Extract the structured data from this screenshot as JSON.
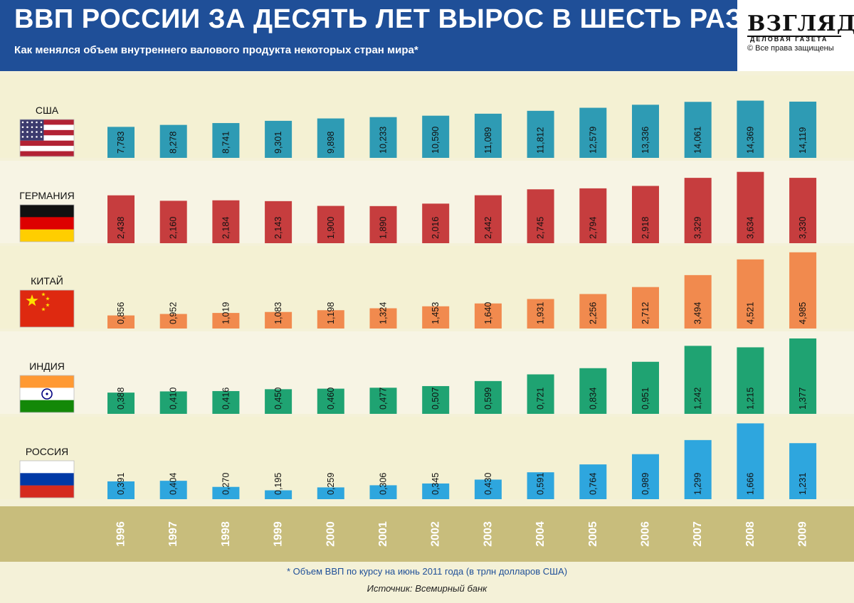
{
  "header": {
    "title": "ВВП РОССИИ ЗА ДЕСЯТЬ ЛЕТ ВЫРОС В ШЕСТЬ РАЗ",
    "subtitle": "Как менялся объем внутреннего валового продукта некоторых стран мира*"
  },
  "logo": {
    "name": "ВЗГЛЯД",
    "tagline": "ДЕЛОВАЯ ГАЗЕТА",
    "copyright": "© Все права защищены"
  },
  "chart_data": {
    "type": "bar",
    "categories": [
      "1996",
      "1997",
      "1998",
      "1999",
      "2000",
      "2001",
      "2002",
      "2003",
      "2004",
      "2005",
      "2006",
      "2007",
      "2008",
      "2009"
    ],
    "series": [
      {
        "name": "США",
        "color": "#2e9bb4",
        "flag": "usa-flag-icon",
        "values": [
          7.783,
          8.278,
          8.741,
          9.301,
          9.898,
          10.233,
          10.59,
          11.089,
          11.812,
          12.579,
          13.336,
          14.061,
          14.369,
          14.119
        ],
        "labels": [
          "7,783",
          "8,278",
          "8,741",
          "9,301",
          "9,898",
          "10,233",
          "10,590",
          "11,089",
          "11,812",
          "12,579",
          "13,336",
          "14,061",
          "14,369",
          "14,119"
        ]
      },
      {
        "name": "ГЕРМАНИЯ",
        "color": "#c63d3e",
        "flag": "germany-flag-icon",
        "values": [
          2.438,
          2.16,
          2.184,
          2.143,
          1.9,
          1.89,
          2.016,
          2.442,
          2.745,
          2.794,
          2.918,
          3.329,
          3.634,
          3.33
        ],
        "labels": [
          "2,438",
          "2,160",
          "2,184",
          "2,143",
          "1,900",
          "1,890",
          "2,016",
          "2,442",
          "2,745",
          "2,794",
          "2,918",
          "3,329",
          "3,634",
          "3,330"
        ]
      },
      {
        "name": "КИТАЙ",
        "color": "#f18a4e",
        "flag": "china-flag-icon",
        "values": [
          0.856,
          0.952,
          1.019,
          1.083,
          1.198,
          1.324,
          1.453,
          1.64,
          1.931,
          2.256,
          2.712,
          3.494,
          4.521,
          4.985
        ],
        "labels": [
          "0,856",
          "0,952",
          "1,019",
          "1,083",
          "1,198",
          "1,324",
          "1,453",
          "1,640",
          "1,931",
          "2,256",
          "2,712",
          "3,494",
          "4,521",
          "4,985"
        ]
      },
      {
        "name": "ИНДИЯ",
        "color": "#1fa372",
        "flag": "india-flag-icon",
        "values": [
          0.388,
          0.41,
          0.416,
          0.45,
          0.46,
          0.477,
          0.507,
          0.599,
          0.721,
          0.834,
          0.951,
          1.242,
          1.215,
          1.377
        ],
        "labels": [
          "0,388",
          "0,410",
          "0,416",
          "0,450",
          "0,460",
          "0,477",
          "0,507",
          "0,599",
          "0,721",
          "0,834",
          "0,951",
          "1,242",
          "1,215",
          "1,377"
        ]
      },
      {
        "name": "РОССИЯ",
        "color": "#2ea6de",
        "flag": "russia-flag-icon",
        "values": [
          0.391,
          0.404,
          0.27,
          0.195,
          0.259,
          0.306,
          0.345,
          0.43,
          0.591,
          0.764,
          0.989,
          1.299,
          1.666,
          1.231
        ],
        "labels": [
          "0,391",
          "0,404",
          "0,270",
          "0,195",
          "0,259",
          "0,306",
          "0,345",
          "0,430",
          "0,591",
          "0,764",
          "0,989",
          "1,299",
          "1,666",
          "1,231"
        ]
      }
    ]
  },
  "footnote": "* Объем ВВП по курсу на июнь 2011 года (в трлн долларов США)",
  "source": "Источник: Всемирный банк"
}
